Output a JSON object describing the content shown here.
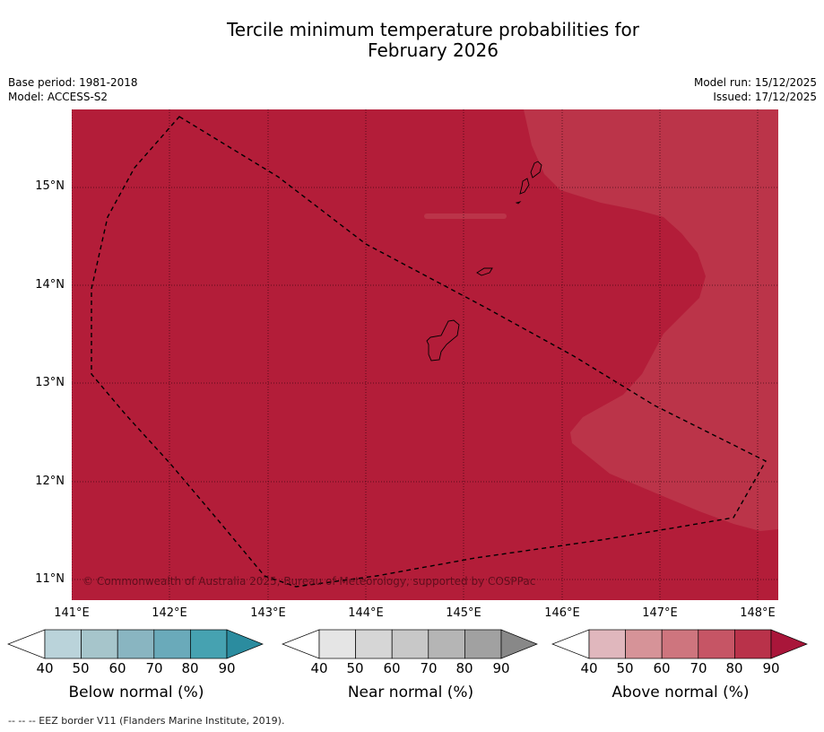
{
  "title_line1": "Tercile minimum temperature probabilities for",
  "title_line2": "February 2026",
  "meta": {
    "base_period": "Base period: 1981-2018",
    "model": "Model: ACCESS-S2",
    "model_run": "Model run: 15/12/2025",
    "issued": "Issued: 17/12/2025"
  },
  "map": {
    "lat_labels": [
      "15°N",
      "14°N",
      "13°N",
      "12°N",
      "11°N"
    ],
    "lon_labels": [
      "141°E",
      "142°E",
      "143°E",
      "144°E",
      "145°E",
      "146°E",
      "147°E",
      "148°E"
    ],
    "copyright": "© Commonwealth of Australia 2025, Bureau of Meteorology, supported by COSPPac",
    "colors": {
      "above_80_90": "#b31d39",
      "above_70_80": "#bb3449",
      "ocean_border": "#000000"
    }
  },
  "colorbars": {
    "ticks": [
      "40",
      "50",
      "60",
      "70",
      "80",
      "90"
    ],
    "below": {
      "title": "Below normal (%)",
      "colors": [
        "#ffffff",
        "#bad3da",
        "#a6c5cb",
        "#89b5c1",
        "#6aaaba",
        "#46a2b1",
        "#2b8c9f"
      ]
    },
    "near": {
      "title": "Near normal (%)",
      "colors": [
        "#ffffff",
        "#e5e5e5",
        "#d6d6d6",
        "#c8c8c8",
        "#b5b5b5",
        "#a1a1a1",
        "#888888"
      ]
    },
    "above": {
      "title": "Above normal (%)",
      "colors": [
        "#ffffff",
        "#e0b7bd",
        "#d69398",
        "#ce757e",
        "#c65565",
        "#b9324a",
        "#a9163a"
      ]
    }
  },
  "footer": "--  --  -- EEZ border V11 (Flanders Marine Institute, 2019)."
}
